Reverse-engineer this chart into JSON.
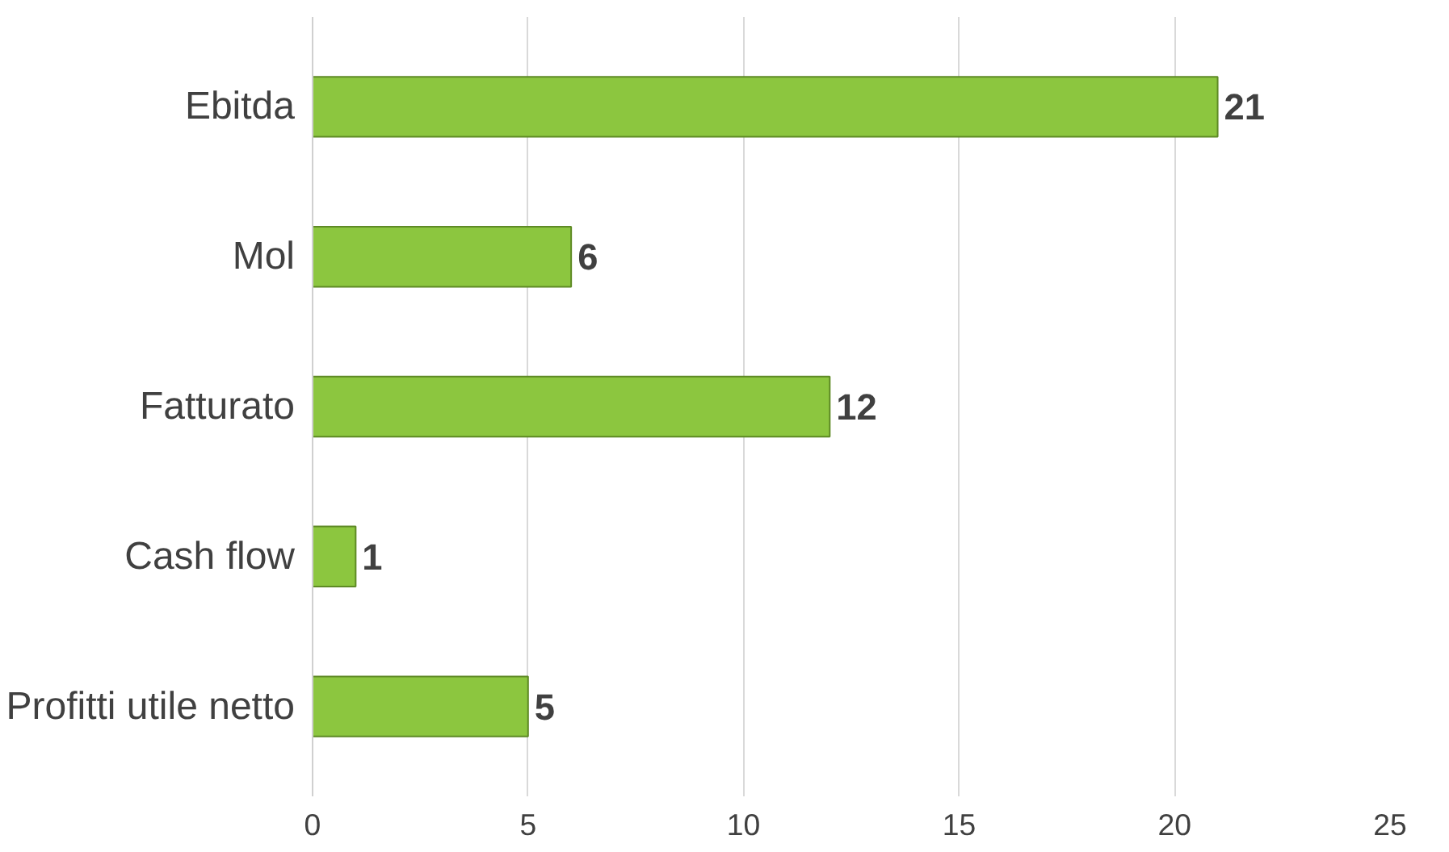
{
  "chart_data": {
    "type": "bar",
    "orientation": "horizontal",
    "categories": [
      "Ebitda",
      "Mol",
      "Fatturato",
      "Cash flow",
      "Profitti utile netto"
    ],
    "values": [
      21,
      6,
      12,
      1,
      5
    ],
    "color": "#8cc63f",
    "xlim": [
      0,
      25
    ],
    "xticks": [
      0,
      5,
      10,
      15,
      20,
      25
    ],
    "grid": "x",
    "data_labels": true
  }
}
